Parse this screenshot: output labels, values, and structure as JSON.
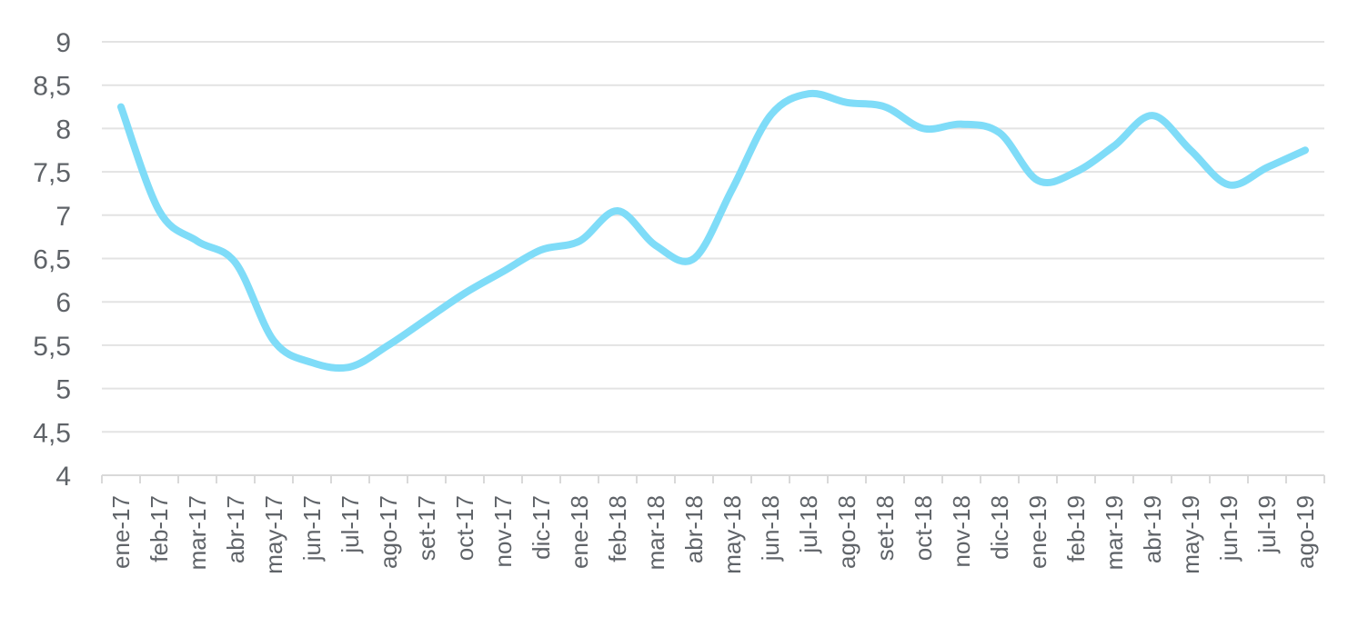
{
  "chart_data": {
    "type": "line",
    "title": "",
    "xlabel": "",
    "ylabel": "",
    "ylim": [
      4,
      9
    ],
    "yticks": [
      "4",
      "4,5",
      "5",
      "5,5",
      "6",
      "6,5",
      "7",
      "7,5",
      "8",
      "8,5",
      "9"
    ],
    "grid": "horizontal",
    "line_color": "#7fdcf8",
    "categories": [
      "ene-17",
      "feb-17",
      "mar-17",
      "abr-17",
      "may-17",
      "jun-17",
      "jul-17",
      "ago-17",
      "set-17",
      "oct-17",
      "nov-17",
      "dic-17",
      "ene-18",
      "feb-18",
      "mar-18",
      "abr-18",
      "may-18",
      "jun-18",
      "jul-18",
      "ago-18",
      "set-18",
      "oct-18",
      "nov-18",
      "dic-18",
      "ene-19",
      "feb-19",
      "mar-19",
      "abr-19",
      "may-19",
      "jun-19",
      "jul-19",
      "ago-19"
    ],
    "series": [
      {
        "values": [
          8.25,
          7.05,
          6.7,
          6.45,
          5.55,
          5.3,
          5.25,
          5.5,
          5.8,
          6.1,
          6.35,
          6.6,
          6.7,
          7.05,
          6.65,
          6.5,
          7.3,
          8.15,
          8.4,
          8.3,
          8.25,
          8.0,
          8.05,
          7.95,
          7.4,
          7.5,
          7.8,
          8.15,
          7.75,
          7.35,
          7.55,
          7.75
        ]
      }
    ]
  }
}
